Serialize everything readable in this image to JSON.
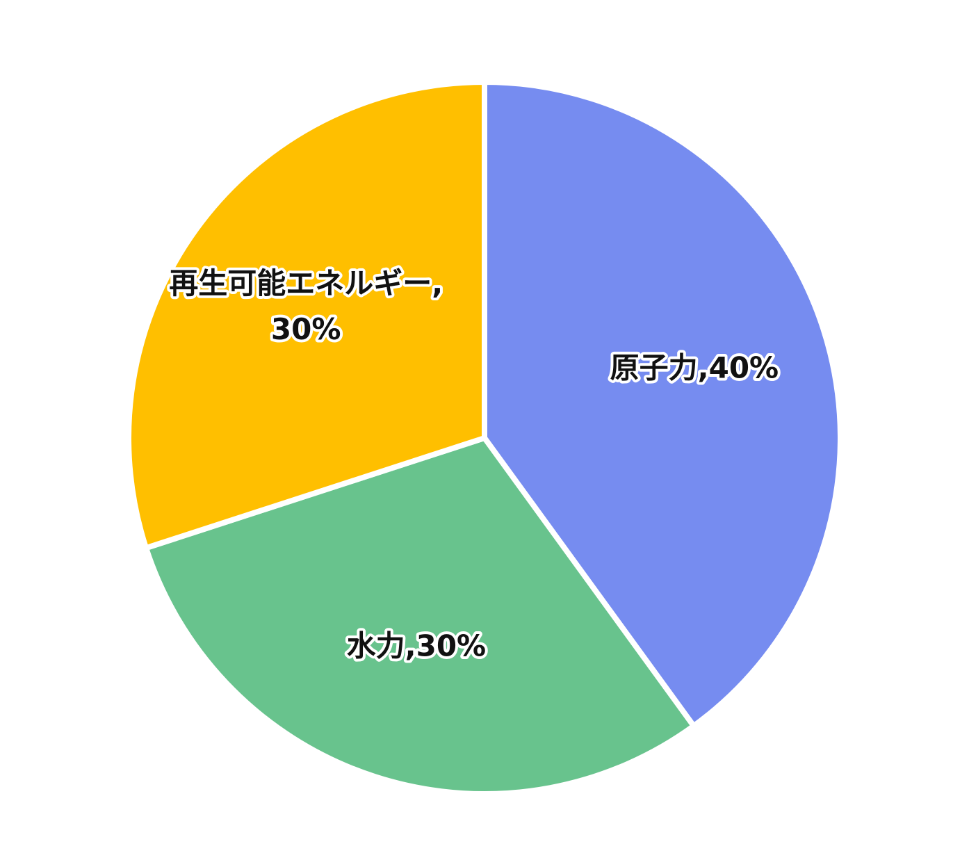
{
  "chart_data": {
    "type": "pie",
    "title": "",
    "start_angle_deg": 0,
    "direction": "clockwise",
    "slices": [
      {
        "label": "原子力",
        "value": 40,
        "value_text": "40%",
        "color": "#768CF0",
        "label_lines": [
          "原子力,40%"
        ]
      },
      {
        "label": "水力",
        "value": 30,
        "value_text": "30%",
        "color": "#68C38D",
        "label_lines": [
          "水力,30%"
        ]
      },
      {
        "label": "再生可能エネルギー",
        "value": 30,
        "value_text": "30%",
        "color": "#FFBF00",
        "label_lines": [
          "再生可能エネルギー,",
          "30%"
        ]
      }
    ]
  }
}
